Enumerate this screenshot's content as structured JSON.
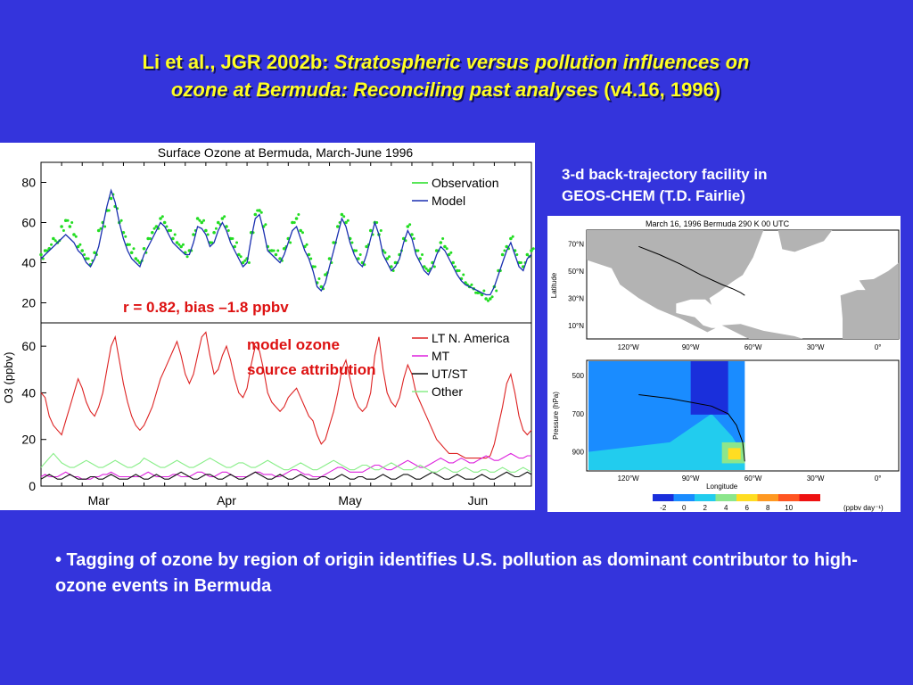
{
  "slide": {
    "title_plain": "Li et al., JGR 2002b: ",
    "title_italic_1": "Stratospheric versus pollution influences on",
    "title_italic_2": "ozone at Bermuda: Reconciling past analyses",
    "title_tail": " (v4.16, 1996)",
    "trajectory_caption_line1": "3-d back-trajectory facility in",
    "trajectory_caption_line2": "GEOS-CHEM (T.D. Fairlie)",
    "bullet_text": "• Tagging of ozone by region of origin identifies U.S. pollution as dominant contributor to high-ozone events in Bermuda"
  },
  "chart_data": [
    {
      "type": "line",
      "title": "Surface Ozone at Bermuda, March-June 1996",
      "ylabel": "O3 (ppbv)",
      "x_tick_labels": [
        "Mar",
        "Apr",
        "May",
        "Jun"
      ],
      "x_range_days": [
        1,
        120
      ],
      "ylim": [
        10,
        90
      ],
      "y_ticks": [
        20,
        40,
        60,
        80
      ],
      "annotation": "r = 0.82, bias –1.8 ppbv",
      "series": [
        {
          "name": "Observation",
          "color": "#22dd22",
          "style": "points",
          "values": [
            44,
            46,
            47,
            52,
            50,
            58,
            61,
            58,
            54,
            48,
            46,
            42,
            39,
            45,
            56,
            60,
            66,
            72,
            68,
            60,
            55,
            49,
            45,
            42,
            40,
            47,
            52,
            55,
            58,
            62,
            60,
            56,
            52,
            50,
            48,
            45,
            46,
            54,
            62,
            60,
            56,
            50,
            55,
            60,
            62,
            58,
            52,
            48,
            44,
            40,
            42,
            55,
            64,
            66,
            58,
            48,
            46,
            44,
            42,
            47,
            52,
            60,
            62,
            56,
            48,
            44,
            38,
            30,
            28,
            34,
            42,
            50,
            58,
            64,
            60,
            52,
            46,
            42,
            40,
            48,
            56,
            60,
            54,
            46,
            42,
            38,
            40,
            44,
            52,
            58,
            54,
            46,
            42,
            38,
            36,
            40,
            46,
            50,
            48,
            44,
            40,
            36,
            32,
            30,
            28,
            27,
            25,
            24,
            22,
            22,
            28,
            36,
            44,
            48,
            52,
            46,
            40,
            38,
            44,
            46
          ]
        },
        {
          "name": "Model",
          "color": "#1a2fb0",
          "style": "line",
          "values": [
            42,
            44,
            46,
            48,
            50,
            52,
            54,
            52,
            50,
            46,
            44,
            40,
            38,
            42,
            48,
            58,
            68,
            76,
            70,
            60,
            52,
            46,
            42,
            40,
            38,
            44,
            48,
            52,
            56,
            60,
            58,
            54,
            50,
            48,
            46,
            44,
            44,
            50,
            58,
            57,
            54,
            48,
            50,
            56,
            60,
            56,
            50,
            46,
            42,
            38,
            40,
            52,
            62,
            64,
            56,
            46,
            44,
            42,
            40,
            44,
            50,
            56,
            58,
            52,
            46,
            42,
            36,
            28,
            26,
            30,
            38,
            46,
            54,
            62,
            58,
            50,
            44,
            40,
            38,
            44,
            52,
            60,
            54,
            44,
            40,
            36,
            38,
            42,
            50,
            56,
            52,
            44,
            40,
            36,
            34,
            38,
            44,
            48,
            46,
            42,
            38,
            34,
            31,
            29,
            28,
            27,
            26,
            25,
            24,
            24,
            28,
            34,
            40,
            46,
            50,
            44,
            38,
            36,
            42,
            44
          ]
        }
      ]
    },
    {
      "type": "line",
      "title": "",
      "ylabel": "O3 (ppbv)",
      "x_tick_labels": [
        "Mar",
        "Apr",
        "May",
        "Jun"
      ],
      "x_range_days": [
        1,
        120
      ],
      "ylim": [
        0,
        70
      ],
      "y_ticks": [
        0,
        20,
        40,
        60
      ],
      "annotation_line1": "model ozone",
      "annotation_line2": "source attribution",
      "series": [
        {
          "name": "LT N. America",
          "color": "#dd2222",
          "values": [
            40,
            38,
            30,
            26,
            24,
            22,
            28,
            34,
            40,
            46,
            42,
            36,
            32,
            30,
            34,
            40,
            50,
            60,
            64,
            54,
            44,
            36,
            30,
            26,
            24,
            26,
            30,
            34,
            40,
            46,
            50,
            54,
            58,
            62,
            56,
            48,
            44,
            48,
            56,
            64,
            66,
            56,
            48,
            50,
            56,
            60,
            54,
            46,
            40,
            38,
            42,
            52,
            60,
            58,
            50,
            40,
            36,
            34,
            32,
            34,
            38,
            40,
            42,
            38,
            34,
            30,
            28,
            22,
            18,
            20,
            26,
            32,
            40,
            50,
            54,
            46,
            38,
            34,
            32,
            34,
            40,
            56,
            64,
            50,
            40,
            36,
            34,
            38,
            46,
            52,
            48,
            40,
            36,
            32,
            28,
            24,
            20,
            18,
            16,
            14,
            14,
            14,
            13,
            12,
            12,
            12,
            12,
            12,
            12,
            13,
            18,
            26,
            34,
            44,
            48,
            40,
            30,
            24,
            22,
            24
          ]
        },
        {
          "name": "MT",
          "color": "#dd22dd",
          "values": [
            4,
            5,
            4,
            4,
            4,
            5,
            6,
            5,
            4,
            4,
            3,
            3,
            3,
            4,
            4,
            5,
            5,
            6,
            5,
            4,
            4,
            4,
            4,
            4,
            4,
            5,
            6,
            5,
            4,
            4,
            4,
            4,
            5,
            5,
            4,
            4,
            4,
            5,
            6,
            6,
            5,
            4,
            4,
            5,
            6,
            6,
            5,
            4,
            4,
            4,
            4,
            5,
            6,
            6,
            5,
            5,
            5,
            4,
            4,
            5,
            6,
            7,
            7,
            6,
            5,
            5,
            4,
            4,
            4,
            5,
            6,
            7,
            8,
            8,
            7,
            6,
            6,
            6,
            6,
            7,
            8,
            9,
            9,
            8,
            7,
            7,
            8,
            9,
            10,
            11,
            10,
            9,
            8,
            8,
            9,
            10,
            11,
            12,
            11,
            10,
            10,
            11,
            12,
            11,
            10,
            10,
            11,
            12,
            13,
            12,
            11,
            11,
            12,
            13,
            14,
            13,
            12,
            12,
            13,
            13
          ]
        },
        {
          "name": "UT/ST",
          "color": "#111111",
          "values": [
            3,
            4,
            5,
            4,
            3,
            3,
            4,
            5,
            4,
            3,
            3,
            3,
            4,
            4,
            3,
            3,
            4,
            5,
            4,
            3,
            3,
            3,
            4,
            5,
            4,
            3,
            3,
            4,
            5,
            4,
            3,
            3,
            4,
            5,
            6,
            5,
            4,
            3,
            3,
            4,
            5,
            5,
            4,
            3,
            3,
            4,
            5,
            4,
            3,
            3,
            4,
            5,
            6,
            5,
            4,
            3,
            3,
            4,
            5,
            4,
            3,
            3,
            4,
            5,
            4,
            3,
            3,
            3,
            4,
            4,
            3,
            3,
            4,
            5,
            4,
            3,
            3,
            4,
            4,
            3,
            3,
            3,
            4,
            5,
            4,
            3,
            3,
            4,
            5,
            5,
            4,
            3,
            3,
            4,
            5,
            6,
            5,
            4,
            3,
            3,
            4,
            5,
            4,
            3,
            3,
            3,
            4,
            5,
            4,
            3,
            3,
            4,
            5,
            6,
            5,
            4,
            4,
            5,
            6,
            5
          ]
        },
        {
          "name": "Other",
          "color": "#88ee88",
          "values": [
            8,
            10,
            12,
            14,
            12,
            10,
            9,
            8,
            8,
            9,
            10,
            11,
            10,
            9,
            8,
            8,
            9,
            10,
            11,
            10,
            9,
            8,
            8,
            9,
            10,
            12,
            11,
            10,
            9,
            8,
            8,
            9,
            10,
            11,
            10,
            9,
            8,
            8,
            9,
            10,
            11,
            12,
            11,
            10,
            9,
            8,
            8,
            9,
            10,
            10,
            9,
            8,
            8,
            9,
            10,
            11,
            10,
            9,
            8,
            7,
            7,
            8,
            9,
            10,
            9,
            8,
            7,
            7,
            8,
            9,
            10,
            11,
            10,
            9,
            8,
            7,
            7,
            8,
            9,
            9,
            8,
            7,
            7,
            8,
            9,
            10,
            9,
            8,
            7,
            7,
            7,
            8,
            9,
            8,
            7,
            6,
            6,
            7,
            8,
            7,
            6,
            6,
            7,
            8,
            7,
            6,
            6,
            7,
            7,
            6,
            6,
            7,
            8,
            7,
            6,
            6,
            7,
            8,
            7,
            6
          ]
        }
      ]
    },
    {
      "type": "line",
      "title": "March 16, 1996    Bermuda    290 K    00 UTC",
      "ylabel": "Latitude",
      "x_tick_labels": [
        "120°W",
        "90°W",
        "60°W",
        "30°W",
        "0°"
      ],
      "y_tick_labels": [
        "70°N",
        "50°N",
        "30°N",
        "10°N"
      ],
      "x": [
        -115,
        -105,
        -95,
        -85,
        -75,
        -70,
        -66,
        -64
      ],
      "y": [
        68,
        62,
        55,
        47,
        40,
        37,
        34,
        32
      ]
    },
    {
      "type": "heatmap",
      "title": "",
      "xlabel": "Longitude",
      "ylabel": "Pressure (hPa)",
      "x_tick_labels": [
        "120°W",
        "90°W",
        "60°W",
        "30°W",
        "0°"
      ],
      "y_tick_labels": [
        "500",
        "700",
        "900"
      ],
      "colorbar_ticks": [
        "-2",
        "0",
        "2",
        "4",
        "6",
        "8",
        "10"
      ],
      "colorbar_unit": "(ppbv day⁻¹)",
      "colorbar_colors": [
        "#1a2fdb",
        "#1a8cff",
        "#22ccee",
        "#8ce68c",
        "#ffdd22",
        "#ff9922",
        "#ff5522",
        "#ee1111"
      ],
      "trajectory_x": [
        -115,
        -100,
        -90,
        -80,
        -72,
        -68,
        -65,
        -64
      ],
      "trajectory_y": [
        600,
        620,
        640,
        660,
        700,
        760,
        850,
        950
      ]
    }
  ]
}
